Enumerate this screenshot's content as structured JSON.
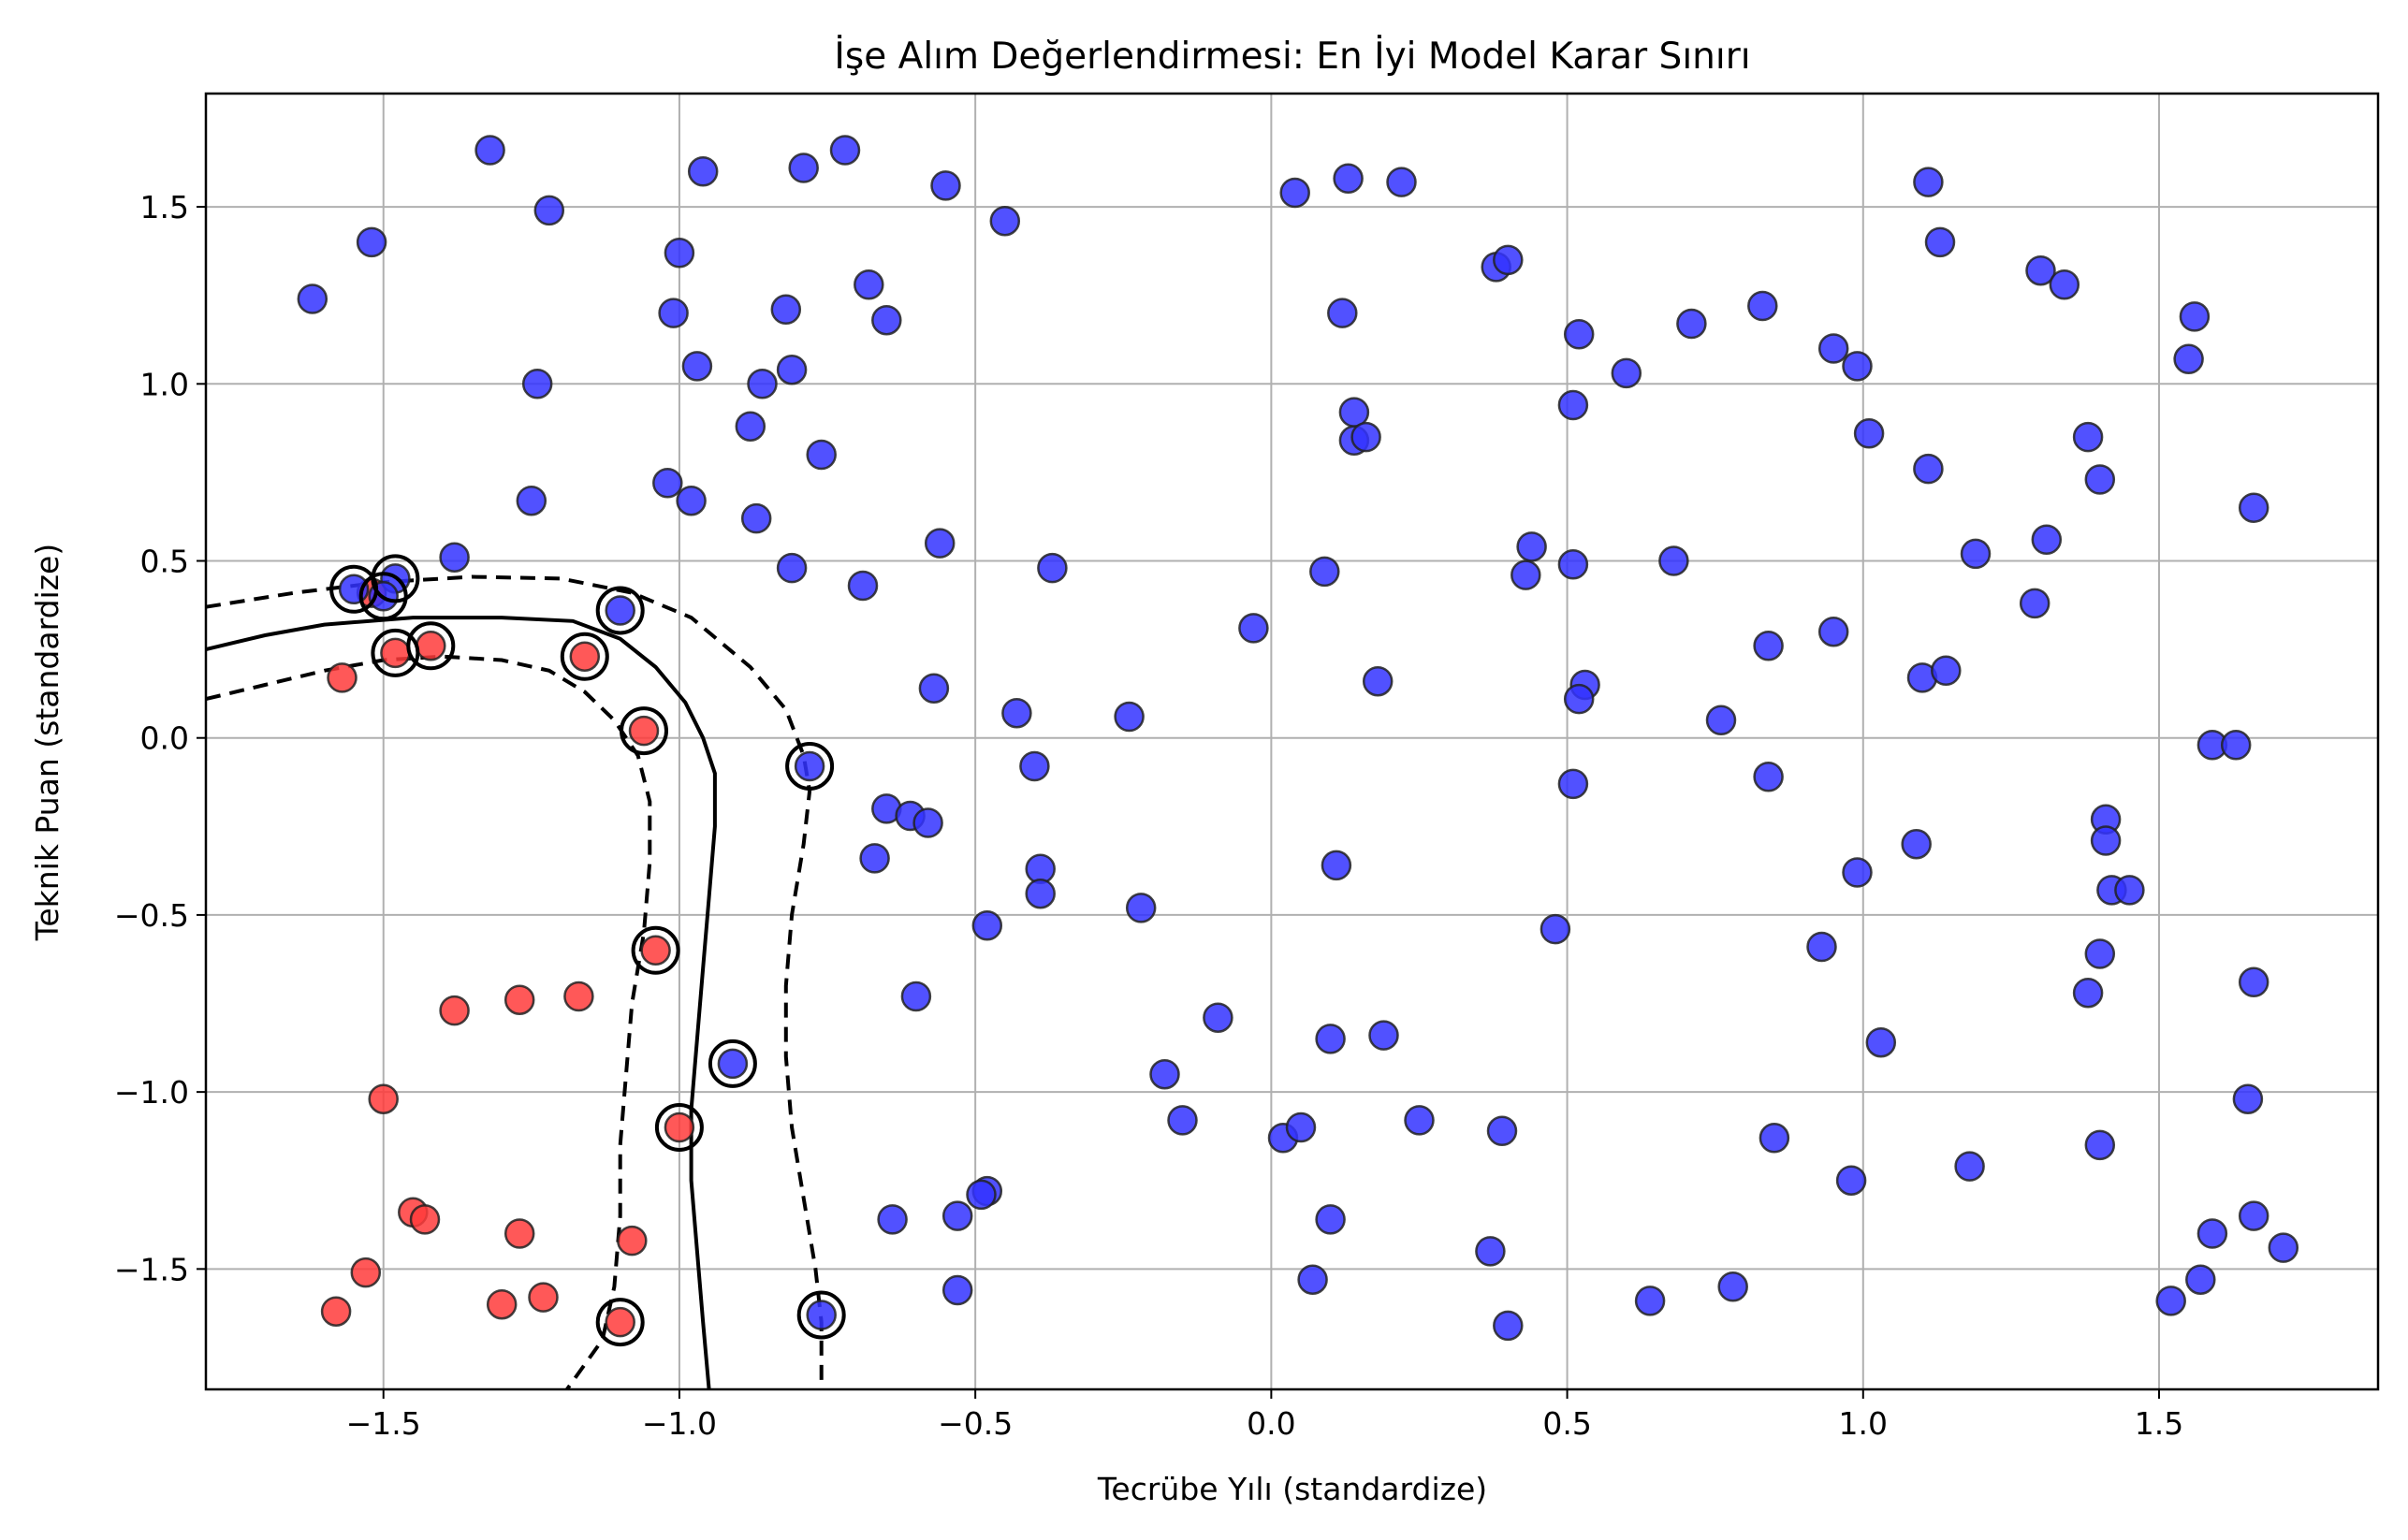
{
  "chart_data": {
    "type": "scatter",
    "title": "İşe Alım Değerlendirmesi: En İyi Model Karar Sınırı",
    "xlabel": "Tecrübe Yılı (standardize)",
    "ylabel": "Teknik Puan (standardize)",
    "xlim": [
      -1.8,
      1.87
    ],
    "ylim": [
      -1.84,
      1.82
    ],
    "grid": true,
    "x_ticks": [
      -1.5,
      -1.0,
      -0.5,
      0.0,
      0.5,
      1.0,
      1.5
    ],
    "x_tick_labels": [
      "−1.5",
      "−1.0",
      "−0.5",
      "0.0",
      "0.5",
      "1.0",
      "1.5"
    ],
    "y_ticks": [
      -1.5,
      -1.0,
      -0.5,
      0.0,
      0.5,
      1.0,
      1.5
    ],
    "y_tick_labels": [
      "−1.5",
      "−1.0",
      "−0.5",
      "0.0",
      "0.5",
      "1.0",
      "1.5"
    ],
    "colors": {
      "class_red": "#ff3b3b",
      "class_blue": "#3333ff",
      "marker_edge": "#222222",
      "boundary": "#000000"
    },
    "series": [
      {
        "class": "red",
        "points": [
          [
            -1.57,
            0.17
          ],
          [
            -1.52,
            0.41
          ],
          [
            -1.48,
            0.24
          ],
          [
            -1.42,
            0.26
          ],
          [
            -1.16,
            0.23
          ],
          [
            -1.06,
            0.02
          ],
          [
            -1.04,
            -0.6
          ],
          [
            -1.0,
            -1.1
          ],
          [
            -1.1,
            -1.65
          ],
          [
            -1.08,
            -1.42
          ],
          [
            -1.38,
            -0.77
          ],
          [
            -1.27,
            -0.74
          ],
          [
            -1.17,
            -0.73
          ],
          [
            -1.5,
            -1.02
          ],
          [
            -1.45,
            -1.34
          ],
          [
            -1.43,
            -1.36
          ],
          [
            -1.27,
            -1.4
          ],
          [
            -1.53,
            -1.51
          ],
          [
            -1.58,
            -1.62
          ],
          [
            -1.3,
            -1.6
          ],
          [
            -1.23,
            -1.58
          ]
        ]
      },
      {
        "class": "blue",
        "points": [
          [
            -1.62,
            1.24
          ],
          [
            -1.52,
            1.4
          ],
          [
            -1.32,
            1.66
          ],
          [
            -1.22,
            1.49
          ],
          [
            -1.24,
            1.0
          ],
          [
            -1.25,
            0.67
          ],
          [
            -1.38,
            0.51
          ],
          [
            -1.55,
            0.42
          ],
          [
            -1.48,
            0.45
          ],
          [
            -1.5,
            0.4
          ],
          [
            -1.1,
            0.36
          ],
          [
            -0.96,
            1.6
          ],
          [
            -0.79,
            1.61
          ],
          [
            -0.72,
            1.66
          ],
          [
            -1.0,
            1.37
          ],
          [
            -1.01,
            1.2
          ],
          [
            -0.97,
            1.05
          ],
          [
            -0.82,
            1.21
          ],
          [
            -0.81,
            1.04
          ],
          [
            -0.86,
            1.0
          ],
          [
            -0.88,
            0.88
          ],
          [
            -0.76,
            0.8
          ],
          [
            -1.02,
            0.72
          ],
          [
            -0.98,
            0.67
          ],
          [
            -0.87,
            0.62
          ],
          [
            -0.81,
            0.48
          ],
          [
            -0.68,
            1.28
          ],
          [
            -0.65,
            1.18
          ],
          [
            -0.55,
            1.56
          ],
          [
            -0.45,
            1.46
          ],
          [
            -0.56,
            0.55
          ],
          [
            -0.69,
            0.43
          ],
          [
            -0.37,
            0.48
          ],
          [
            -0.78,
            -0.08
          ],
          [
            -0.57,
            0.14
          ],
          [
            -0.43,
            0.07
          ],
          [
            -0.24,
            0.06
          ],
          [
            -0.4,
            -0.08
          ],
          [
            -0.65,
            -0.2
          ],
          [
            -0.61,
            -0.22
          ],
          [
            -0.58,
            -0.24
          ],
          [
            -0.67,
            -0.34
          ],
          [
            -0.39,
            -0.37
          ],
          [
            -0.39,
            -0.44
          ],
          [
            -0.48,
            -0.53
          ],
          [
            -0.22,
            -0.48
          ],
          [
            -0.6,
            -0.73
          ],
          [
            -0.91,
            -0.92
          ],
          [
            -0.09,
            -0.79
          ],
          [
            -0.18,
            -0.95
          ],
          [
            -0.15,
            -1.08
          ],
          [
            -0.64,
            -1.36
          ],
          [
            -0.53,
            -1.35
          ],
          [
            -0.48,
            -1.28
          ],
          [
            -0.49,
            -1.29
          ],
          [
            -0.53,
            -1.56
          ],
          [
            -0.76,
            -1.63
          ],
          [
            0.04,
            1.54
          ],
          [
            0.13,
            1.58
          ],
          [
            0.22,
            1.57
          ],
          [
            0.12,
            1.2
          ],
          [
            0.14,
            0.92
          ],
          [
            0.14,
            0.84
          ],
          [
            0.16,
            0.85
          ],
          [
            0.09,
            0.47
          ],
          [
            -0.03,
            0.31
          ],
          [
            0.18,
            0.16
          ],
          [
            0.11,
            -0.36
          ],
          [
            0.1,
            -0.85
          ],
          [
            0.19,
            -0.84
          ],
          [
            0.02,
            -1.13
          ],
          [
            0.05,
            -1.1
          ],
          [
            0.1,
            -1.36
          ],
          [
            0.07,
            -1.53
          ],
          [
            0.25,
            -1.08
          ],
          [
            0.38,
            1.33
          ],
          [
            0.4,
            1.35
          ],
          [
            0.52,
            1.14
          ],
          [
            0.51,
            0.94
          ],
          [
            0.6,
            1.03
          ],
          [
            0.71,
            1.17
          ],
          [
            0.44,
            0.54
          ],
          [
            0.43,
            0.46
          ],
          [
            0.51,
            0.49
          ],
          [
            0.68,
            0.5
          ],
          [
            0.53,
            0.15
          ],
          [
            0.52,
            0.11
          ],
          [
            0.51,
            -0.13
          ],
          [
            0.48,
            -0.54
          ],
          [
            0.39,
            -1.11
          ],
          [
            0.37,
            -1.45
          ],
          [
            0.4,
            -1.66
          ],
          [
            0.64,
            -1.59
          ],
          [
            0.78,
            -1.55
          ],
          [
            0.83,
            1.22
          ],
          [
            0.95,
            1.1
          ],
          [
            0.99,
            1.05
          ],
          [
            1.01,
            0.86
          ],
          [
            0.84,
            0.26
          ],
          [
            0.76,
            0.05
          ],
          [
            0.95,
            0.3
          ],
          [
            0.84,
            -0.11
          ],
          [
            0.99,
            -0.38
          ],
          [
            0.93,
            -0.59
          ],
          [
            0.85,
            -1.13
          ],
          [
            0.98,
            -1.25
          ],
          [
            1.03,
            -0.86
          ],
          [
            1.11,
            1.57
          ],
          [
            1.13,
            1.4
          ],
          [
            1.3,
            1.32
          ],
          [
            1.34,
            1.28
          ],
          [
            1.11,
            0.76
          ],
          [
            1.19,
            0.52
          ],
          [
            1.31,
            0.56
          ],
          [
            1.29,
            0.38
          ],
          [
            1.1,
            0.17
          ],
          [
            1.14,
            0.19
          ],
          [
            1.38,
            0.85
          ],
          [
            1.4,
            0.73
          ],
          [
            1.56,
            1.19
          ],
          [
            1.55,
            1.07
          ],
          [
            1.66,
            0.65
          ],
          [
            1.59,
            -0.02
          ],
          [
            1.63,
            -0.02
          ],
          [
            1.41,
            -0.23
          ],
          [
            1.41,
            -0.29
          ],
          [
            1.42,
            -0.43
          ],
          [
            1.45,
            -0.43
          ],
          [
            1.09,
            -0.3
          ],
          [
            1.4,
            -0.61
          ],
          [
            1.38,
            -0.72
          ],
          [
            1.66,
            -0.69
          ],
          [
            1.18,
            -1.21
          ],
          [
            1.4,
            -1.15
          ],
          [
            1.65,
            -1.02
          ],
          [
            1.66,
            -1.35
          ],
          [
            1.59,
            -1.4
          ],
          [
            1.71,
            -1.44
          ],
          [
            1.52,
            -1.59
          ],
          [
            1.57,
            -1.53
          ]
        ]
      }
    ],
    "support_vectors": [
      [
        -1.55,
        0.42
      ],
      [
        -1.48,
        0.45
      ],
      [
        -1.5,
        0.4
      ],
      [
        -1.1,
        0.36
      ],
      [
        -1.48,
        0.24
      ],
      [
        -1.42,
        0.26
      ],
      [
        -1.16,
        0.23
      ],
      [
        -1.06,
        0.02
      ],
      [
        -0.78,
        -0.08
      ],
      [
        -1.04,
        -0.6
      ],
      [
        -0.91,
        -0.92
      ],
      [
        -1.0,
        -1.1
      ],
      [
        -1.1,
        -1.65
      ],
      [
        -0.76,
        -1.63
      ]
    ],
    "decision_boundary": [
      [
        -1.8,
        0.25
      ],
      [
        -1.7,
        0.29
      ],
      [
        -1.6,
        0.32
      ],
      [
        -1.45,
        0.34
      ],
      [
        -1.3,
        0.34
      ],
      [
        -1.18,
        0.33
      ],
      [
        -1.1,
        0.28
      ],
      [
        -1.04,
        0.2
      ],
      [
        -0.99,
        0.1
      ],
      [
        -0.96,
        0.0
      ],
      [
        -0.94,
        -0.1
      ],
      [
        -0.94,
        -0.25
      ],
      [
        -0.95,
        -0.45
      ],
      [
        -0.96,
        -0.65
      ],
      [
        -0.97,
        -0.85
      ],
      [
        -0.98,
        -1.05
      ],
      [
        -0.98,
        -1.25
      ],
      [
        -0.97,
        -1.45
      ],
      [
        -0.96,
        -1.65
      ],
      [
        -0.95,
        -1.84
      ]
    ],
    "margin_upper": [
      [
        -1.8,
        0.37
      ],
      [
        -1.65,
        0.41
      ],
      [
        -1.5,
        0.44
      ],
      [
        -1.35,
        0.455
      ],
      [
        -1.2,
        0.45
      ],
      [
        -1.08,
        0.41
      ],
      [
        -0.98,
        0.34
      ],
      [
        -0.88,
        0.2
      ],
      [
        -0.82,
        0.08
      ],
      [
        -0.79,
        -0.05
      ],
      [
        -0.78,
        -0.15
      ],
      [
        -0.79,
        -0.3
      ],
      [
        -0.81,
        -0.5
      ],
      [
        -0.82,
        -0.7
      ],
      [
        -0.82,
        -0.9
      ],
      [
        -0.81,
        -1.1
      ],
      [
        -0.79,
        -1.3
      ],
      [
        -0.77,
        -1.5
      ],
      [
        -0.76,
        -1.65
      ],
      [
        -0.76,
        -1.84
      ]
    ],
    "margin_lower": [
      [
        -1.8,
        0.11
      ],
      [
        -1.7,
        0.15
      ],
      [
        -1.6,
        0.19
      ],
      [
        -1.5,
        0.22
      ],
      [
        -1.4,
        0.23
      ],
      [
        -1.3,
        0.22
      ],
      [
        -1.22,
        0.19
      ],
      [
        -1.16,
        0.13
      ],
      [
        -1.11,
        0.05
      ],
      [
        -1.07,
        -0.05
      ],
      [
        -1.05,
        -0.18
      ],
      [
        -1.05,
        -0.35
      ],
      [
        -1.06,
        -0.55
      ],
      [
        -1.08,
        -0.75
      ],
      [
        -1.09,
        -0.95
      ],
      [
        -1.1,
        -1.15
      ],
      [
        -1.1,
        -1.35
      ],
      [
        -1.11,
        -1.55
      ],
      [
        -1.13,
        -1.7
      ],
      [
        -1.19,
        -1.84
      ]
    ]
  }
}
